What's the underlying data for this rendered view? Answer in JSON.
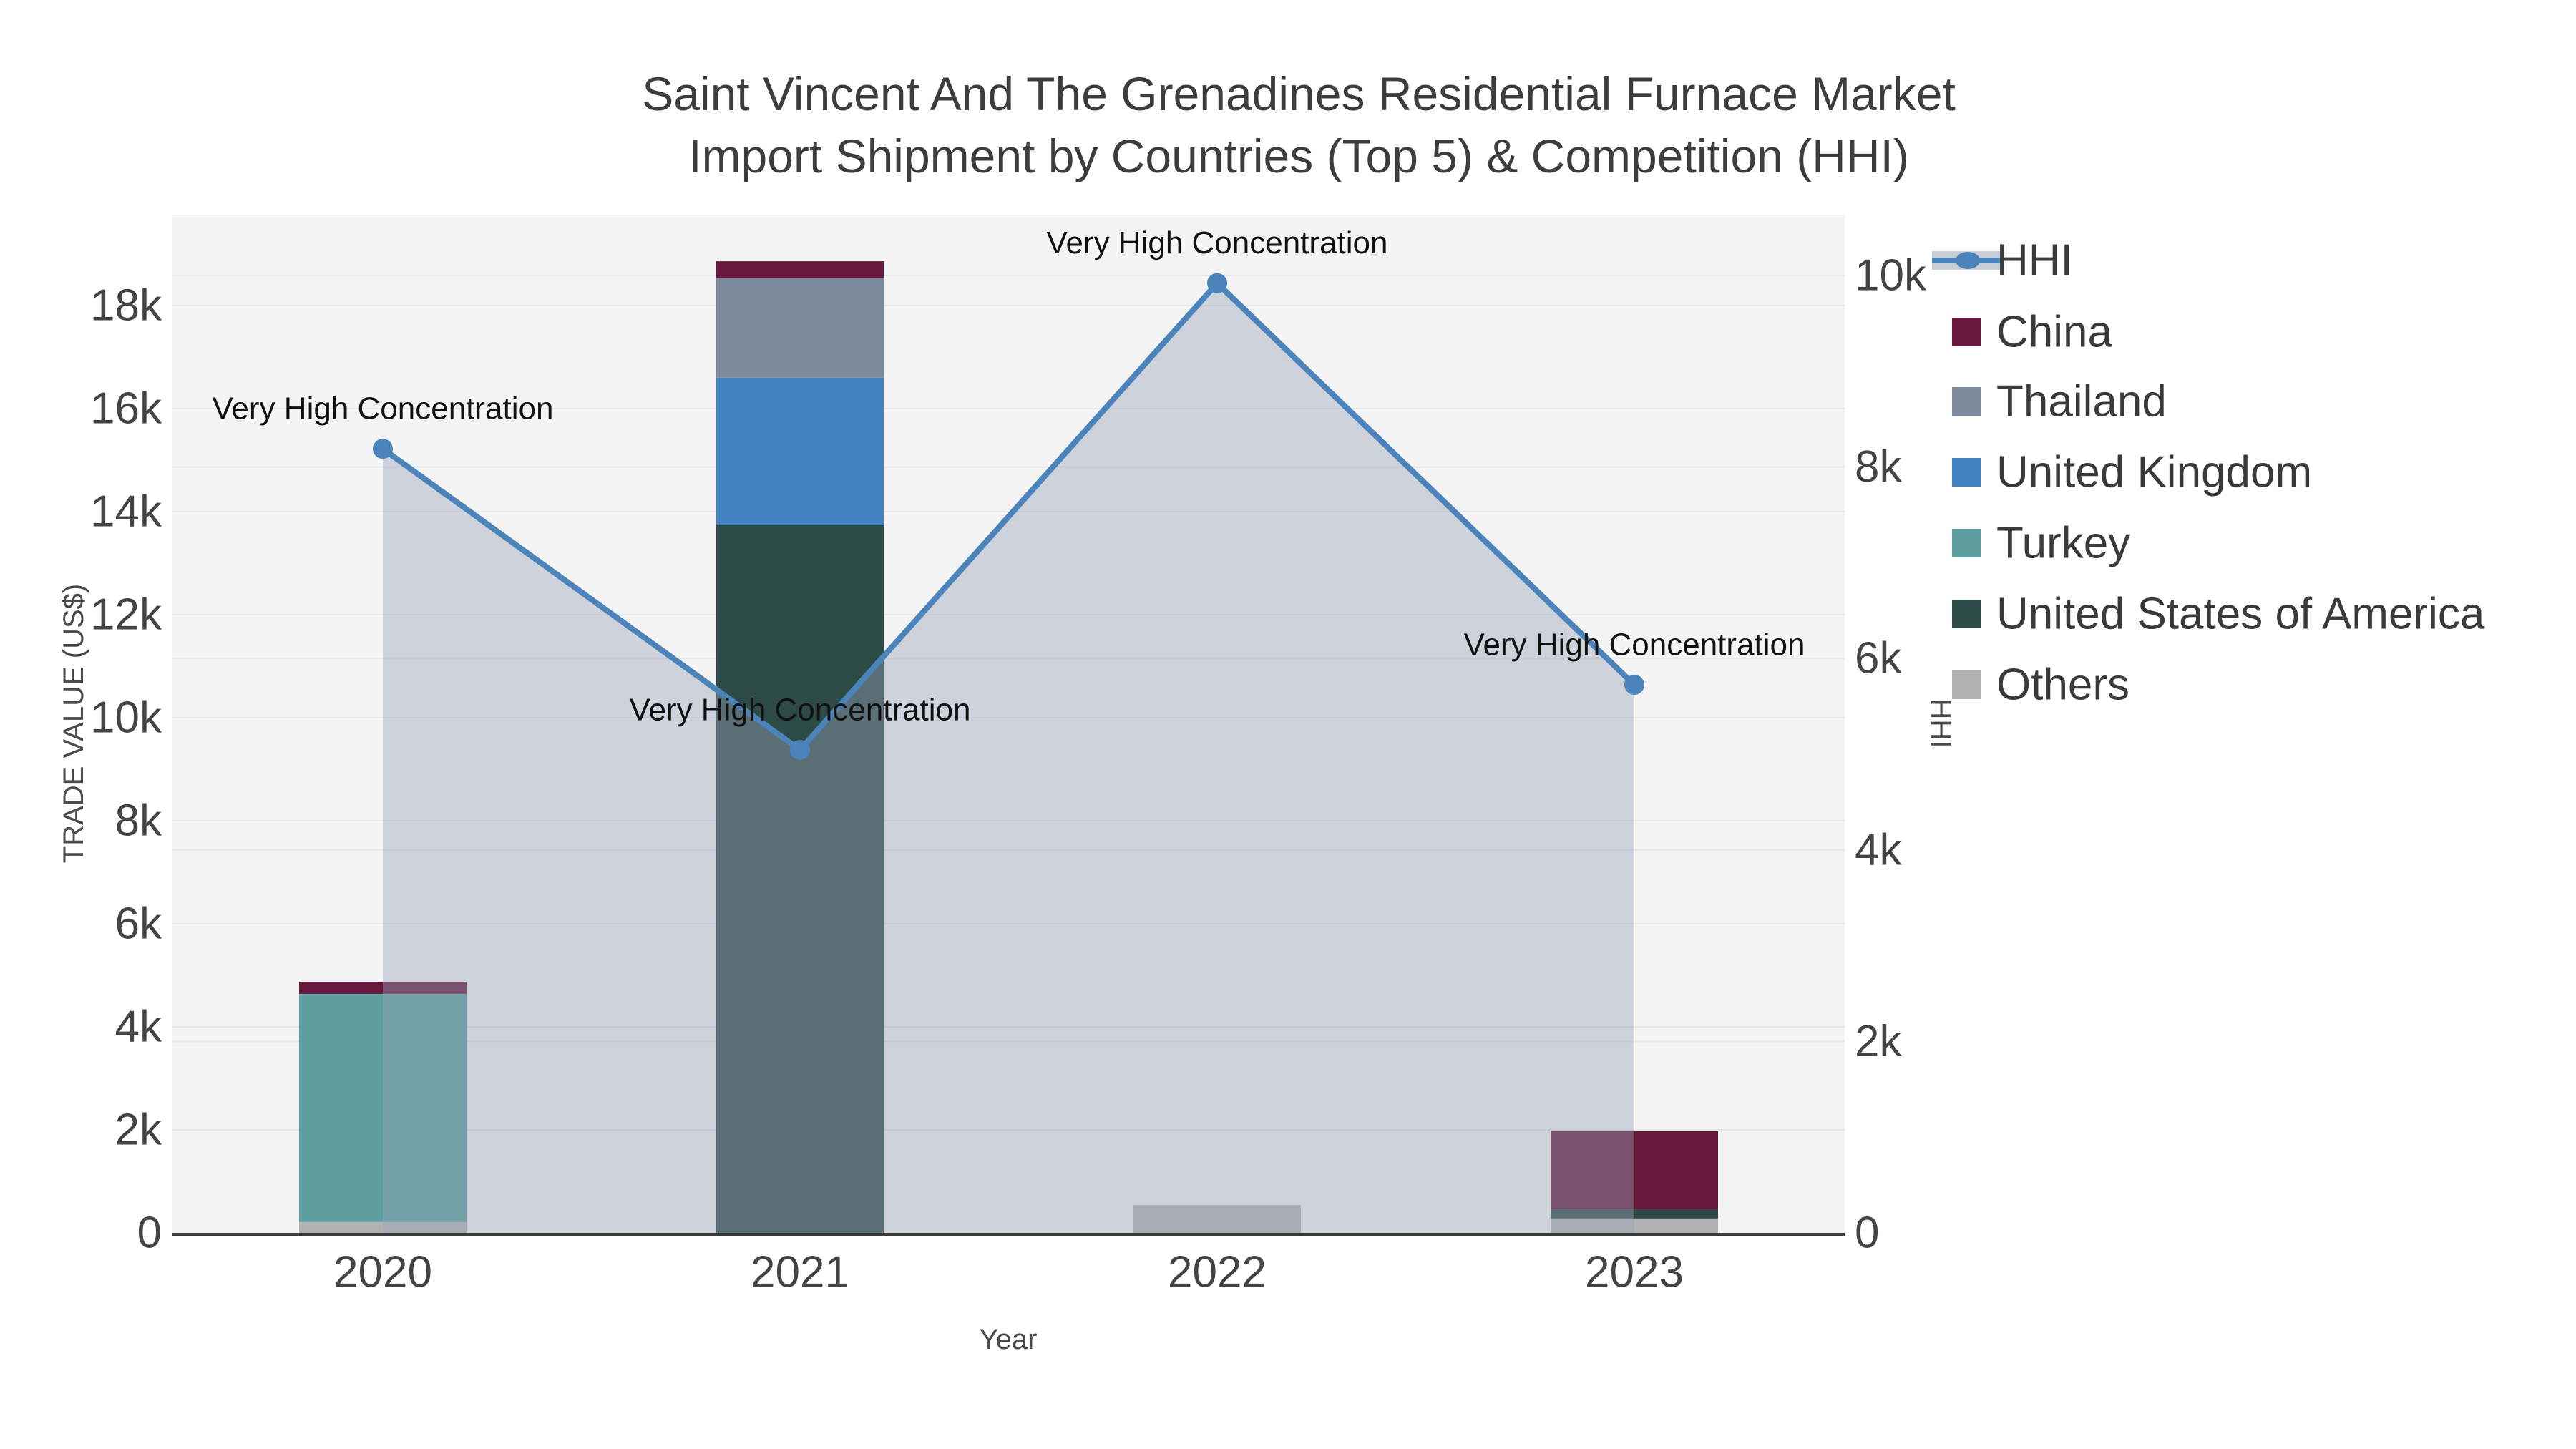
{
  "title": {
    "line1": "Saint Vincent And The Grenadines Residential Furnace Market",
    "line2": "Import Shipment by Countries (Top 5) & Competition (HHI)"
  },
  "axes": {
    "left": {
      "title": "TRADE VALUE (US$)",
      "tick_labels": [
        "0",
        "2k",
        "4k",
        "6k",
        "8k",
        "10k",
        "12k",
        "14k",
        "16k",
        "18k"
      ],
      "tick_values": [
        0,
        2000,
        4000,
        6000,
        8000,
        10000,
        12000,
        14000,
        16000,
        18000
      ]
    },
    "right": {
      "title": "HHI",
      "tick_labels": [
        "0",
        "2k",
        "4k",
        "6k",
        "8k",
        "10k"
      ],
      "tick_values": [
        0,
        2000,
        4000,
        6000,
        8000,
        10000
      ]
    },
    "x": {
      "title": "Year",
      "categories": [
        "2020",
        "2021",
        "2022",
        "2023"
      ]
    }
  },
  "legend": {
    "items": [
      {
        "label": "HHI",
        "type": "line",
        "color": "#4b84ba",
        "band_color": "#c9cfd9"
      },
      {
        "label": "China",
        "type": "bar",
        "color": "#67183c"
      },
      {
        "label": "Thailand",
        "type": "bar",
        "color": "#7d899c"
      },
      {
        "label": "United Kingdom",
        "type": "bar",
        "color": "#4383c1"
      },
      {
        "label": "Turkey",
        "type": "bar",
        "color": "#5d9fa1"
      },
      {
        "label": "United States of America",
        "type": "bar",
        "color": "#2d4a46"
      },
      {
        "label": "Others",
        "type": "bar",
        "color": "#b1b1b1"
      }
    ]
  },
  "annotation_text": "Very High Concentration",
  "colors": {
    "plot_bg": "#f4f4f5",
    "grid": "#e7e7e9",
    "axis_line": "#3a3a3a",
    "hhi_line": "#4b84ba",
    "hhi_area_fill": "rgba(151,163,183,0.42)",
    "annotation": "#111111"
  },
  "chart_data": {
    "type": "bar+line",
    "title": "Saint Vincent And The Grenadines Residential Furnace Market Import Shipment by Countries (Top 5) & Competition (HHI)",
    "xlabel": "Year",
    "ylabel": "TRADE VALUE (US$)",
    "y2label": "HHI",
    "categories": [
      "2020",
      "2021",
      "2022",
      "2023"
    ],
    "ylim": [
      0,
      19700
    ],
    "y2lim": [
      0,
      10600
    ],
    "grid": true,
    "legend_position": "right",
    "stack_order_bottom_to_top": [
      "Others",
      "United States of America",
      "Turkey",
      "United Kingdom",
      "Thailand",
      "China"
    ],
    "series": [
      {
        "name": "China",
        "type": "bar",
        "color": "#67183c",
        "values": [
          235,
          330,
          0,
          1515
        ]
      },
      {
        "name": "Thailand",
        "type": "bar",
        "color": "#7d899c",
        "values": [
          0,
          1930,
          0,
          0
        ]
      },
      {
        "name": "United Kingdom",
        "type": "bar",
        "color": "#4383c1",
        "values": [
          0,
          2860,
          0,
          0
        ]
      },
      {
        "name": "Turkey",
        "type": "bar",
        "color": "#5d9fa1",
        "values": [
          4430,
          0,
          0,
          0
        ]
      },
      {
        "name": "United States of America",
        "type": "bar",
        "color": "#2d4a46",
        "values": [
          0,
          13740,
          0,
          180
        ]
      },
      {
        "name": "Others",
        "type": "bar",
        "color": "#b1b1b1",
        "values": [
          210,
          0,
          540,
          280
        ]
      }
    ],
    "bar_totals": [
      4875,
      18860,
      540,
      1975
    ],
    "hhi": {
      "name": "HHI",
      "type": "line",
      "color": "#4b84ba",
      "values": [
        8190,
        5045,
        9920,
        5725
      ],
      "area_fill": "rgba(151,163,183,0.42)",
      "point_annotation": "Very High Concentration"
    }
  }
}
